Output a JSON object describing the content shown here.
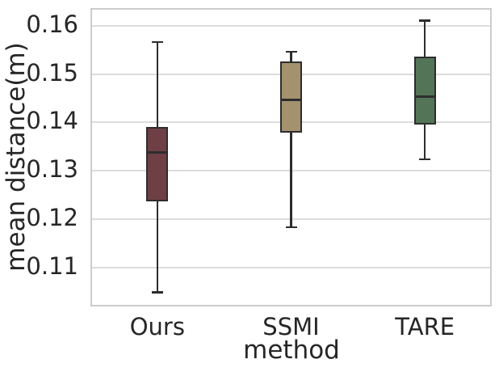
{
  "figure": {
    "background": "#ffffff",
    "text_color": "#262626",
    "grid_color": "#dcdcdc",
    "spine_color": "#cccccc",
    "edge_color": "#2d2d2d"
  },
  "chart_data": {
    "type": "boxplot",
    "title": "",
    "xlabel": "method",
    "ylabel": "mean distance(m)",
    "categories": [
      "Ours",
      "SSMI",
      "TARE"
    ],
    "ylim": [
      0.1016,
      0.1633
    ],
    "yticks": [
      {
        "value": 0.11,
        "label": "0.11"
      },
      {
        "value": 0.12,
        "label": "0.12"
      },
      {
        "value": 0.13,
        "label": "0.13"
      },
      {
        "value": 0.14,
        "label": "0.14"
      },
      {
        "value": 0.15,
        "label": "0.15"
      },
      {
        "value": 0.16,
        "label": "0.16"
      }
    ],
    "grid": "horizontal",
    "legend": "none",
    "series": [
      {
        "name": "Ours",
        "whisker_low": 0.1045,
        "q1": 0.1233,
        "median": 0.1334,
        "q3": 0.1387,
        "whisker_high": 0.1563,
        "fliers": [],
        "fill_color": "#6F3F46"
      },
      {
        "name": "SSMI",
        "whisker_low": 0.118,
        "q1": 0.1376,
        "median": 0.1444,
        "q3": 0.1523,
        "whisker_high": 0.1543,
        "fliers": [],
        "fill_color": "#A4926F"
      },
      {
        "name": "TARE",
        "whisker_low": 0.132,
        "q1": 0.1392,
        "median": 0.145,
        "q3": 0.1533,
        "whisker_high": 0.1607,
        "fliers": [],
        "fill_color": "#547457"
      }
    ]
  }
}
